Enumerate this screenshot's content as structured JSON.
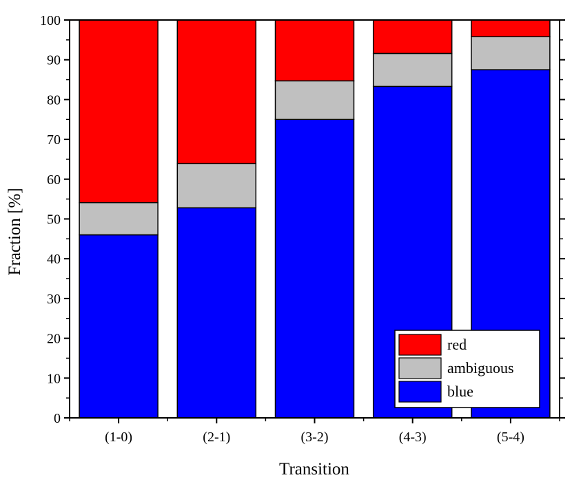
{
  "chart_data": {
    "type": "bar",
    "stacked": true,
    "categories": [
      "(1-0)",
      "(2-1)",
      "(3-2)",
      "(4-3)",
      "(5-4)"
    ],
    "series": [
      {
        "name": "blue",
        "color": "#0000ff",
        "values": [
          46.0,
          52.8,
          75.0,
          83.3,
          87.5
        ]
      },
      {
        "name": "ambiguous",
        "color": "#c0c0c0",
        "values": [
          8.1,
          11.1,
          9.7,
          8.3,
          8.3
        ]
      },
      {
        "name": "red",
        "color": "#ff0000",
        "values": [
          45.9,
          36.1,
          15.3,
          8.4,
          4.2
        ]
      }
    ],
    "xlabel": "Transition",
    "ylabel": "Fraction [%]",
    "ylim": [
      0,
      100
    ],
    "yticks": [
      0,
      10,
      20,
      30,
      40,
      50,
      60,
      70,
      80,
      90,
      100
    ],
    "legend": {
      "position": "bottom-right",
      "entries": [
        "red",
        "ambiguous",
        "blue"
      ]
    }
  }
}
